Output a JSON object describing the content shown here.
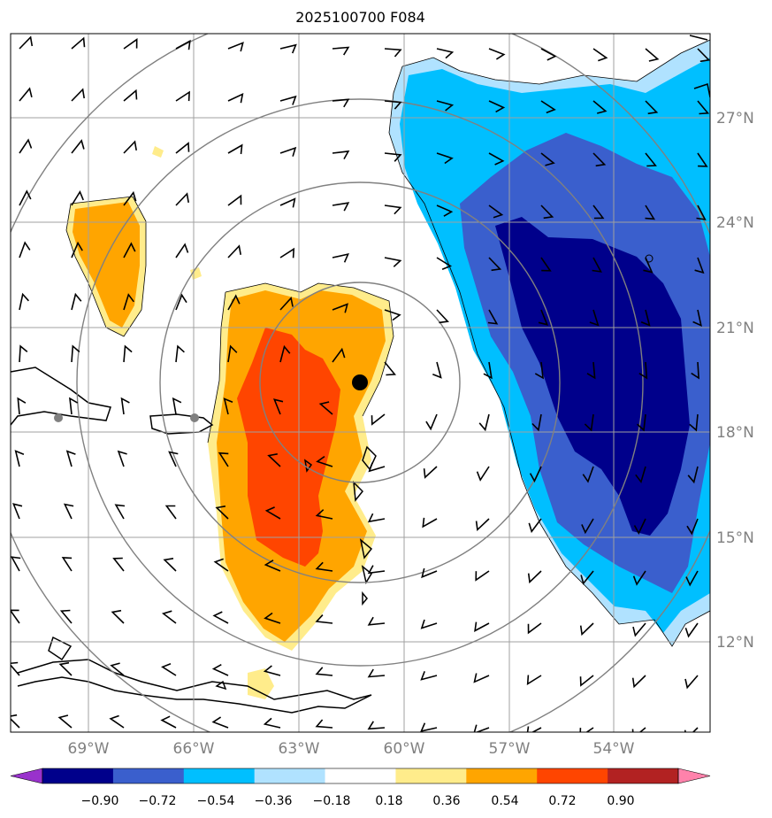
{
  "title": "2025100700 F084",
  "lon_labels": [
    "69°W",
    "66°W",
    "63°W",
    "60°W",
    "57°W",
    "54°W"
  ],
  "lat_labels": [
    "27°N",
    "24°N",
    "21°N",
    "18°N",
    "15°N",
    "12°N"
  ],
  "colorbar": {
    "levels": [
      "−0.90",
      "−0.72",
      "−0.54",
      "−0.36",
      "−0.18",
      "0.18",
      "0.36",
      "0.54",
      "0.72",
      "0.90"
    ],
    "colors": [
      "#9932cc",
      "#00008b",
      "#3a5fcd",
      "#00bfff",
      "#b0e2ff",
      "#ffffff",
      "#ffec8b",
      "#ffa500",
      "#ff4500",
      "#b22222",
      "#ff82ab"
    ]
  },
  "colors": {
    "grid": "#a0a0a0",
    "range_ring": "#808080",
    "storm_center": "#000000",
    "city_dot": "#808080"
  }
}
